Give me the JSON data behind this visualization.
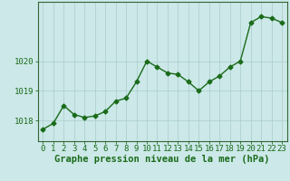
{
  "hours": [
    0,
    1,
    2,
    3,
    4,
    5,
    6,
    7,
    8,
    9,
    10,
    11,
    12,
    13,
    14,
    15,
    16,
    17,
    18,
    19,
    20,
    21,
    22,
    23
  ],
  "pressure": [
    1017.7,
    1017.9,
    1018.5,
    1018.2,
    1018.1,
    1018.15,
    1018.3,
    1018.65,
    1018.75,
    1019.3,
    1020.0,
    1019.8,
    1019.6,
    1019.55,
    1019.3,
    1019.0,
    1019.3,
    1019.5,
    1019.8,
    1020.0,
    1021.3,
    1021.5,
    1021.45,
    1021.3
  ],
  "line_color": "#1a6b1a",
  "marker": "D",
  "marker_size": 2.5,
  "bg_color": "#cce8e8",
  "grid_color": "#aacccc",
  "xlabel": "Graphe pression niveau de la mer (hPa)",
  "xlabel_fontsize": 7.5,
  "yticks": [
    1018,
    1019,
    1020
  ],
  "ylim": [
    1017.3,
    1022.0
  ],
  "xlim": [
    -0.5,
    23.5
  ],
  "tick_fontsize": 6.5,
  "line_width": 1.0,
  "spine_color": "#336633"
}
